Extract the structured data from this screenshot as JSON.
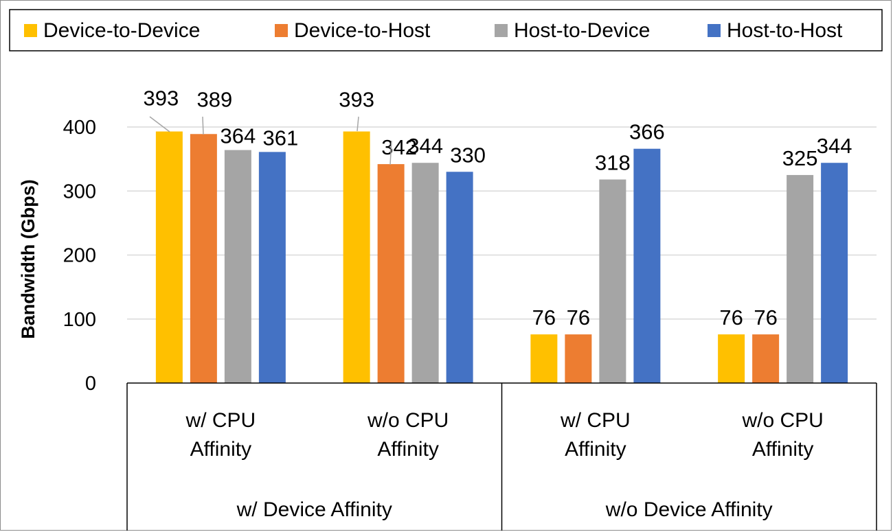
{
  "chart_data": {
    "type": "bar",
    "ylabel": "Bandwidth (Gbps)",
    "ylim": [
      0,
      400
    ],
    "yticks": [
      0,
      100,
      200,
      300,
      400
    ],
    "grid": true,
    "legend_position": "top",
    "groups": [
      {
        "label": "w/ Device Affinity",
        "categories": [
          "w/ CPU\nAffinity",
          "w/o CPU\nAffinity"
        ]
      },
      {
        "label": "w/o Device Affinity",
        "categories": [
          "w/ CPU\nAffinity",
          "w/o CPU\nAffinity"
        ]
      }
    ],
    "categories": [
      "w/ CPU\nAffinity",
      "w/o CPU\nAffinity",
      "w/ CPU\nAffinity",
      "w/o CPU\nAffinity"
    ],
    "series": [
      {
        "name": "Device-to-Device",
        "color": "#FFC000",
        "values": [
          393,
          393,
          76,
          76
        ]
      },
      {
        "name": "Device-to-Host",
        "color": "#ED7D31",
        "values": [
          389,
          342,
          76,
          76
        ]
      },
      {
        "name": "Host-to-Device",
        "color": "#A5A5A5",
        "values": [
          364,
          344,
          318,
          325
        ]
      },
      {
        "name": "Host-to-Host",
        "color": "#4472C4",
        "values": [
          361,
          330,
          366,
          344
        ]
      }
    ]
  }
}
